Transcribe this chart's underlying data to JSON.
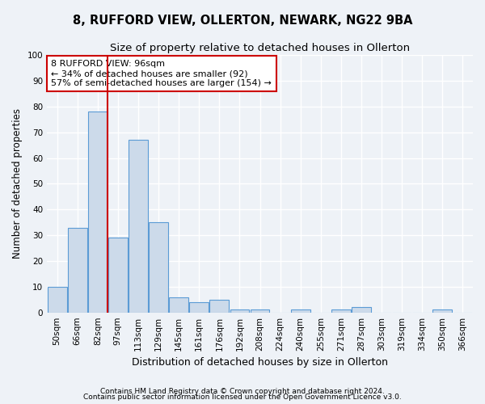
{
  "title1": "8, RUFFORD VIEW, OLLERTON, NEWARK, NG22 9BA",
  "title2": "Size of property relative to detached houses in Ollerton",
  "xlabel": "Distribution of detached houses by size in Ollerton",
  "ylabel": "Number of detached properties",
  "bins": [
    "50sqm",
    "66sqm",
    "82sqm",
    "97sqm",
    "113sqm",
    "129sqm",
    "145sqm",
    "161sqm",
    "176sqm",
    "192sqm",
    "208sqm",
    "224sqm",
    "240sqm",
    "255sqm",
    "271sqm",
    "287sqm",
    "303sqm",
    "319sqm",
    "334sqm",
    "350sqm",
    "366sqm"
  ],
  "values": [
    10,
    33,
    78,
    29,
    67,
    35,
    6,
    4,
    5,
    1,
    1,
    0,
    1,
    0,
    1,
    2,
    0,
    0,
    0,
    1,
    0
  ],
  "bar_color": "#ccdaea",
  "bar_edge_color": "#5b9bd5",
  "red_line_x": 2.5,
  "annotation_text": "8 RUFFORD VIEW: 96sqm\n← 34% of detached houses are smaller (92)\n57% of semi-detached houses are larger (154) →",
  "annotation_box_color": "white",
  "annotation_box_edge_color": "#cc0000",
  "ylim": [
    0,
    100
  ],
  "yticks": [
    0,
    10,
    20,
    30,
    40,
    50,
    60,
    70,
    80,
    90,
    100
  ],
  "footer1": "Contains HM Land Registry data © Crown copyright and database right 2024.",
  "footer2": "Contains public sector information licensed under the Open Government Licence v3.0.",
  "background_color": "#eef2f7",
  "grid_color": "#ffffff",
  "title_fontsize": 10.5,
  "subtitle_fontsize": 9.5,
  "tick_fontsize": 7.5,
  "ylabel_fontsize": 8.5,
  "xlabel_fontsize": 9,
  "footer_fontsize": 6.5,
  "annotation_fontsize": 8
}
